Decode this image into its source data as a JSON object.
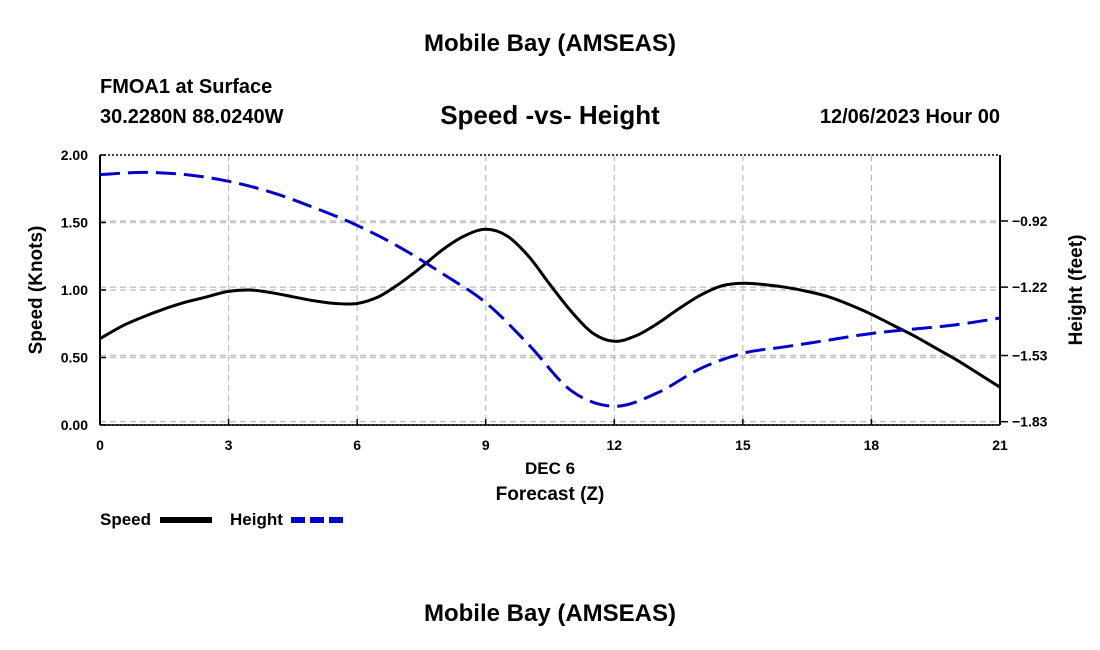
{
  "header": {
    "main_title": "Mobile Bay (AMSEAS)",
    "station_name": "FMOA1 at Surface",
    "station_coords": "30.2280N  88.0240W",
    "plot_title": "Speed -vs- Height",
    "date_hour": "12/06/2023 Hour 00"
  },
  "footer": {
    "title": "Mobile Bay (AMSEAS)"
  },
  "chart_data": {
    "type": "line",
    "title": "Speed -vs- Height",
    "xlabel_date": "DEC 6",
    "xlabel": "Forecast (Z)",
    "ylabel": "Speed (Knots)",
    "ylabel_right": "Height (feet)",
    "xlim": [
      0,
      21
    ],
    "ylim": [
      0,
      2
    ],
    "ylim_right": [
      -1.845,
      -0.621
    ],
    "x_ticks": [
      "0",
      "3",
      "6",
      "9",
      "12",
      "15",
      "18",
      "21"
    ],
    "y_ticks": [
      "0.00",
      "0.50",
      "1.00",
      "1.50",
      "2.00"
    ],
    "y_ticks_right": [
      "-0.92",
      "-1.22",
      "-1.53",
      "-1.83"
    ],
    "grid": true,
    "colors": {
      "speed": "#000000",
      "height": "#0000cc",
      "grid": "#bbbbbb"
    },
    "series": [
      {
        "name": "Speed",
        "axis": "left",
        "style": "solid",
        "x": [
          0,
          0.5,
          1,
          1.5,
          2,
          2.5,
          3,
          3.5,
          4,
          4.5,
          5,
          5.5,
          6,
          6.5,
          7,
          7.5,
          8,
          8.5,
          9,
          9.5,
          10,
          10.5,
          11,
          11.5,
          12,
          12.5,
          13,
          13.5,
          14,
          14.5,
          15,
          15.5,
          16,
          16.5,
          17,
          17.5,
          18,
          18.5,
          19,
          19.5,
          20,
          20.5,
          21
        ],
        "values": [
          0.64,
          0.73,
          0.8,
          0.86,
          0.91,
          0.95,
          0.99,
          1.0,
          0.98,
          0.95,
          0.92,
          0.9,
          0.9,
          0.95,
          1.05,
          1.17,
          1.3,
          1.4,
          1.45,
          1.4,
          1.25,
          1.04,
          0.84,
          0.68,
          0.62,
          0.66,
          0.75,
          0.86,
          0.96,
          1.03,
          1.05,
          1.04,
          1.02,
          0.99,
          0.95,
          0.89,
          0.82,
          0.74,
          0.66,
          0.57,
          0.48,
          0.38,
          0.28
        ]
      },
      {
        "name": "Height",
        "axis": "right",
        "style": "dashed",
        "x": [
          0,
          1,
          2,
          3,
          4,
          5,
          6,
          7,
          8,
          9,
          10,
          11,
          12,
          13,
          14,
          15,
          16,
          17,
          18,
          19,
          20,
          21
        ],
        "values": [
          -0.71,
          -0.7,
          -0.71,
          -0.74,
          -0.79,
          -0.86,
          -0.94,
          -1.04,
          -1.16,
          -1.29,
          -1.48,
          -1.69,
          -1.76,
          -1.7,
          -1.59,
          -1.52,
          -1.49,
          -1.46,
          -1.43,
          -1.41,
          -1.39,
          -1.36
        ]
      }
    ],
    "legend": [
      "Speed",
      "Height"
    ],
    "legend_position": "bottom-left"
  }
}
